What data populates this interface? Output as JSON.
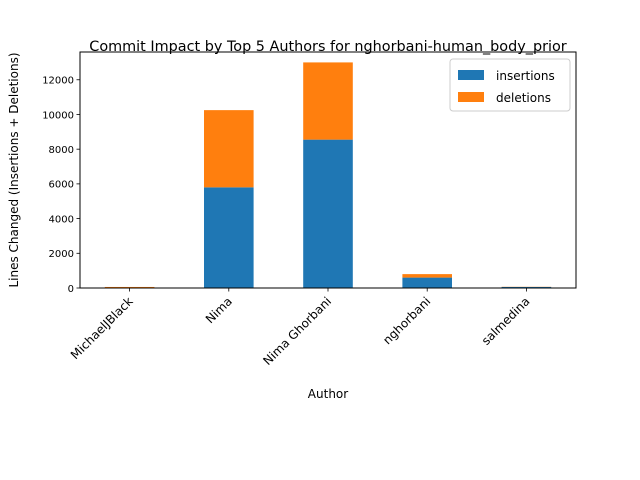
{
  "chart_data": {
    "type": "bar",
    "stacked": true,
    "title": "Commit Impact by Top 5 Authors for nghorbani-human_body_prior",
    "xlabel": "Author",
    "ylabel": "Lines Changed (Insertions + Deletions)",
    "categories": [
      "MichaelJBlack",
      "Nima",
      "Nima Ghorbani",
      "nghorbani",
      "salmedina"
    ],
    "series": [
      {
        "name": "insertions",
        "color": "#1f77b4",
        "values": [
          20,
          5800,
          8550,
          600,
          60
        ]
      },
      {
        "name": "deletions",
        "color": "#ff7f0e",
        "values": [
          40,
          4450,
          4450,
          200,
          10
        ]
      }
    ],
    "ylim": [
      0,
      13600
    ],
    "yticks": [
      0,
      2000,
      4000,
      6000,
      8000,
      10000,
      12000
    ],
    "legend": "top-right",
    "grid": false
  }
}
